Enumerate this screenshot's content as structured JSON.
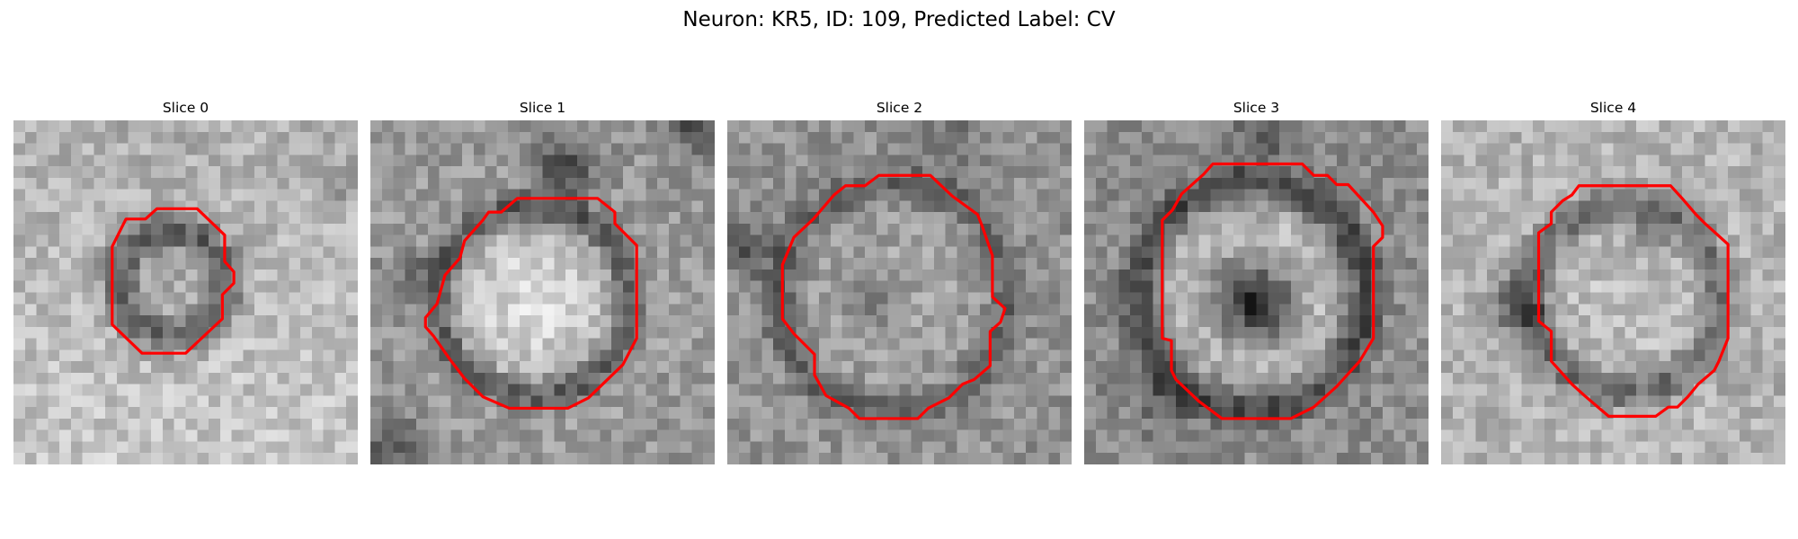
{
  "figure": {
    "title": "Neuron: KR5, ID: 109, Predicted Label: CV"
  },
  "slices": [
    {
      "title": "Slice 0"
    },
    {
      "title": "Slice 1"
    },
    {
      "title": "Slice 2"
    },
    {
      "title": "Slice 3"
    },
    {
      "title": "Slice 4"
    }
  ],
  "colors": {
    "contour": "#ff0000",
    "background": "#ffffff",
    "image_dark": "#1a1a1a",
    "image_light": "#f2f2f2"
  }
}
